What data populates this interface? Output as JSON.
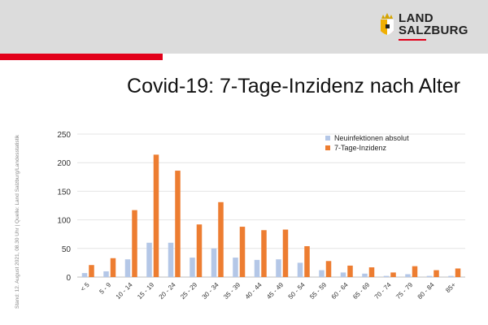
{
  "header": {
    "logo_line1": "LAND",
    "logo_line2": "SALZBURG",
    "accent_color": "#e2001a"
  },
  "title": "Covid-19: 7-Tage-Inzidenz nach Alter",
  "side_note": "Stand: 12. August 2021, 08.30 Uhr | Quelle: Land Salzburg/Landesstatistik",
  "chart_data": {
    "type": "bar",
    "categories": [
      "< 5",
      "5 - 9",
      "10 - 14",
      "15 - 19",
      "20 - 24",
      "25 - 29",
      "30 - 34",
      "35 - 39",
      "40 - 44",
      "45 - 49",
      "50 - 54",
      "55 - 59",
      "60 - 64",
      "65 - 69",
      "70 - 74",
      "75 - 79",
      "80 - 84",
      "85+"
    ],
    "series": [
      {
        "name": "Neuinfektionen absolut",
        "color": "#b4c7e7",
        "values": [
          7,
          10,
          31,
          60,
          60,
          34,
          50,
          34,
          30,
          31,
          25,
          12,
          8,
          6,
          2,
          5,
          2,
          2
        ]
      },
      {
        "name": "7-Tage-Inzidenz",
        "color": "#ed7d31",
        "values": [
          21,
          33,
          117,
          214,
          186,
          92,
          131,
          88,
          82,
          83,
          54,
          28,
          20,
          17,
          8,
          19,
          12,
          15
        ]
      }
    ],
    "yticks": [
      "0",
      "50",
      "100",
      "150",
      "200",
      "250"
    ],
    "ylim": [
      0,
      250
    ],
    "grid": true,
    "legend_position": "top-right"
  }
}
